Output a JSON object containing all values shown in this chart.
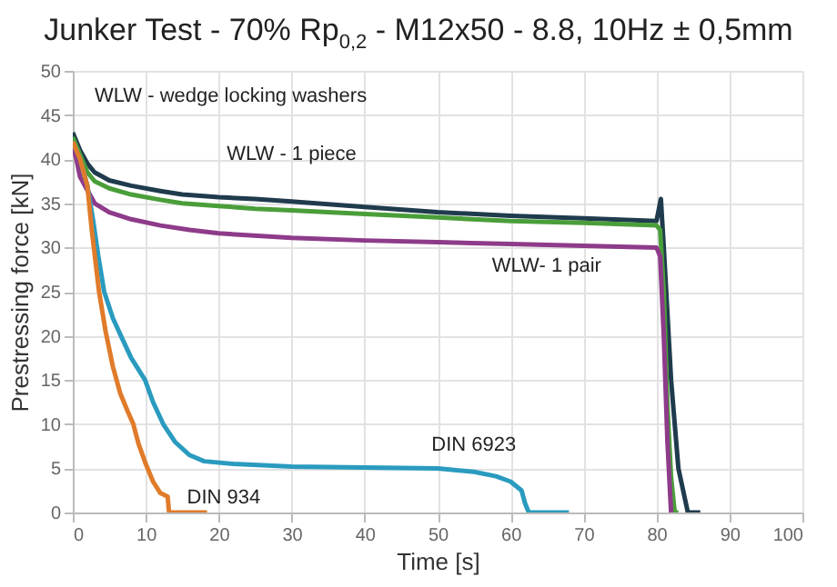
{
  "chart_data": {
    "type": "line",
    "title": "Junker Test -  70% Rp$_{0,2}$ - M12x50 - 8.8, 10Hz ± 0,5mm",
    "xlabel": "Time [s]",
    "ylabel": "Prestressing force [kN]",
    "annotations": [
      "WLW - wedge locking washers"
    ],
    "xlim": [
      0,
      100
    ],
    "xticks": [
      0,
      10,
      20,
      30,
      40,
      50,
      60,
      70,
      80,
      90,
      100
    ],
    "ylim": [
      0,
      50
    ],
    "yticks": [
      0,
      5,
      10,
      15,
      20,
      25,
      30,
      35,
      40,
      45,
      50
    ],
    "grid": true,
    "series": [
      {
        "color": "#1f3b4d",
        "x": [
          0,
          1,
          2,
          3,
          5,
          8,
          12,
          15,
          20,
          25,
          30,
          40,
          50,
          60,
          70,
          80,
          80.6,
          81,
          82,
          83,
          84.3,
          86
        ],
        "values": [
          43,
          41,
          39.5,
          38.5,
          37.6,
          37,
          36.4,
          36,
          35.7,
          35.5,
          35.2,
          34.6,
          34,
          33.6,
          33.3,
          33,
          35.5,
          30,
          15,
          5,
          0,
          0
        ]
      },
      {
        "name": "WLW - 1 piece",
        "color": "#4a9e3a",
        "x": [
          0,
          1,
          2,
          3,
          5,
          8,
          12,
          15,
          20,
          25,
          30,
          40,
          50,
          60,
          70,
          80,
          80.5,
          81,
          81.5,
          82,
          82.5,
          83
        ],
        "values": [
          42.5,
          40.5,
          38.5,
          37.5,
          36.7,
          36,
          35.4,
          35,
          34.7,
          34.4,
          34.2,
          33.8,
          33.4,
          33,
          32.8,
          32.5,
          32,
          25,
          12,
          4,
          0,
          0
        ]
      },
      {
        "name": "WLW- 1 pair",
        "color": "#8e3b8a",
        "x": [
          0,
          0.5,
          1,
          2,
          3,
          5,
          8,
          12,
          16,
          20,
          30,
          40,
          50,
          60,
          70,
          80,
          80.5,
          81,
          81.5,
          82
        ],
        "values": [
          41.5,
          40,
          38,
          36.5,
          35,
          34,
          33.2,
          32.5,
          32,
          31.6,
          31.1,
          30.8,
          30.6,
          30.4,
          30.2,
          30,
          29,
          20,
          8,
          0
        ]
      },
      {
        "name": "DIN 6923",
        "color": "#2a9bbf",
        "x": [
          0,
          1,
          2,
          2.8,
          3.5,
          4.3,
          5.5,
          6.6,
          8,
          9.9,
          11,
          12.4,
          14,
          16,
          18,
          22,
          30,
          40,
          50,
          55,
          58,
          60,
          61.5,
          62,
          62.5,
          68
        ],
        "values": [
          42,
          40,
          37,
          33,
          29,
          25,
          22,
          20,
          17.5,
          15,
          12.5,
          10,
          8,
          6.5,
          5.8,
          5.5,
          5.2,
          5.1,
          5,
          4.6,
          4.1,
          3.5,
          2.5,
          1,
          0,
          0
        ]
      },
      {
        "name": "DIN 934",
        "color": "#e07b2a",
        "x": [
          0,
          1,
          2,
          2.6,
          3.6,
          4.5,
          5.5,
          6.5,
          7.5,
          8.3,
          9,
          10,
          11,
          12,
          13,
          13.2,
          18.4
        ],
        "values": [
          42,
          40,
          37,
          32,
          25,
          20.5,
          16.5,
          13.5,
          11.5,
          10,
          7.8,
          5.5,
          3.5,
          2.2,
          1.8,
          0,
          0
        ]
      }
    ]
  }
}
